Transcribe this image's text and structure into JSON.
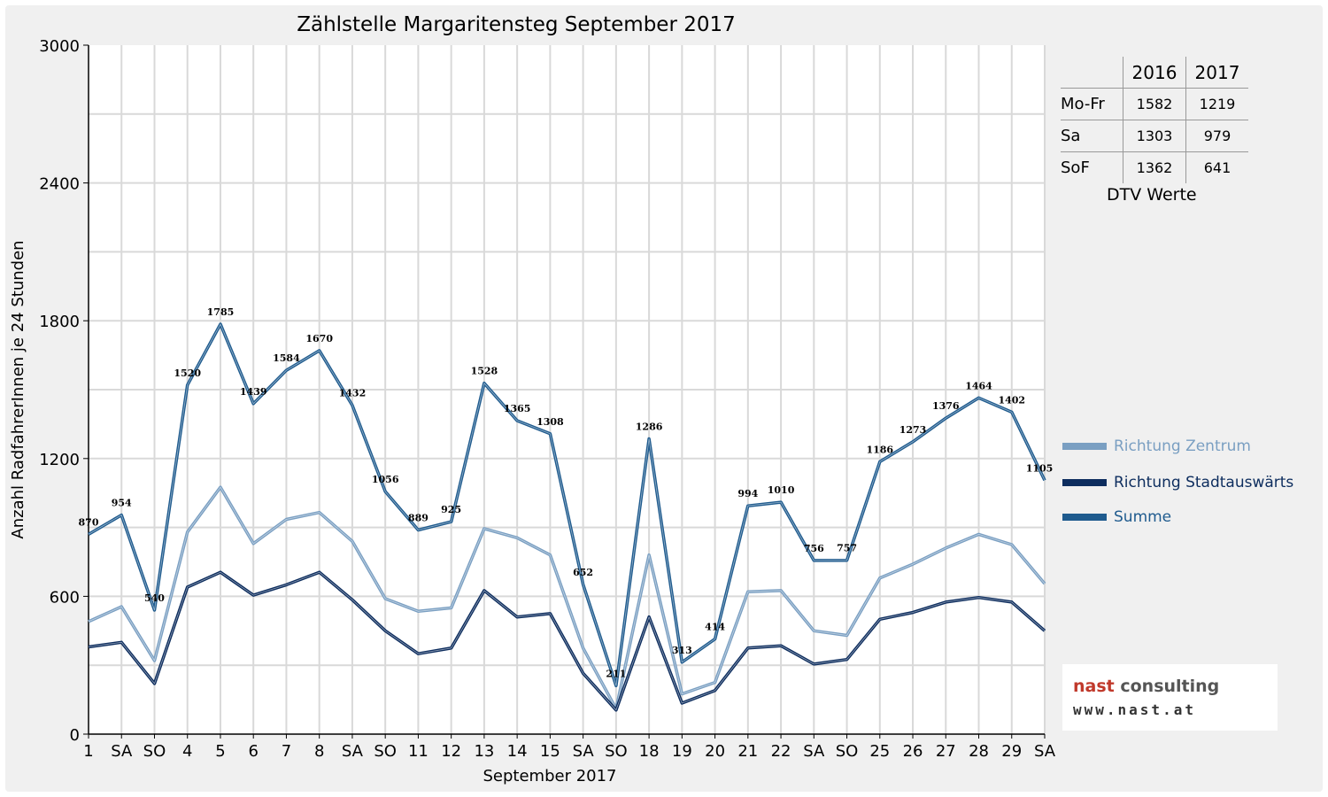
{
  "chart_data": {
    "type": "line",
    "title": "Zählstelle Margaritensteg September 2017",
    "xlabel": "September 2017",
    "ylabel": "Anzahl RadfahrerInnen je 24 Stunden",
    "ylim": [
      0,
      3000
    ],
    "yticks": [
      "3000",
      "2400",
      "1800",
      "1200",
      "600",
      "0"
    ],
    "grid": true,
    "legend_position": "right",
    "categories": [
      "1",
      "SA",
      "SO",
      "4",
      "5",
      "6",
      "7",
      "8",
      "SA",
      "SO",
      "11",
      "12",
      "13",
      "14",
      "15",
      "SA",
      "SO",
      "18",
      "19",
      "20",
      "21",
      "22",
      "SA",
      "SO",
      "25",
      "26",
      "27",
      "28",
      "29",
      "SA"
    ],
    "sunday_color": "#e00000",
    "series": [
      {
        "name": "Richtung Zentrum",
        "color": "#7a9fc2",
        "values": [
          490,
          555,
          320,
          880,
          1075,
          830,
          935,
          965,
          840,
          590,
          535,
          550,
          895,
          855,
          780,
          375,
          110,
          780,
          175,
          225,
          620,
          625,
          450,
          430,
          680,
          740,
          810,
          870,
          825,
          655
        ]
      },
      {
        "name": "Richtung Stadtauswärts",
        "color": "#0d2d5e",
        "values": [
          380,
          400,
          220,
          640,
          705,
          605,
          650,
          705,
          585,
          450,
          350,
          375,
          625,
          510,
          525,
          265,
          105,
          510,
          135,
          190,
          375,
          385,
          305,
          325,
          500,
          530,
          575,
          595,
          575,
          450
        ]
      },
      {
        "name": "Summe",
        "color": "#1f5b8e",
        "values": [
          870,
          954,
          540,
          1520,
          1785,
          1439,
          1584,
          1670,
          1432,
          1056,
          889,
          925,
          1528,
          1365,
          1308,
          652,
          211,
          1286,
          313,
          414,
          994,
          1010,
          756,
          757,
          1186,
          1273,
          1376,
          1464,
          1402,
          1105
        ]
      }
    ],
    "data_labels": [
      "870",
      "954",
      "540",
      "1520",
      "1785",
      "1439",
      "1584",
      "1670",
      "1432",
      "1056",
      "889",
      "925",
      "1528",
      "1365",
      "1308",
      "652",
      "211",
      "1286",
      "313",
      "414",
      "994",
      "1010",
      "756",
      "757",
      "1186",
      "1273",
      "1376",
      "1464",
      "1402",
      "1105"
    ]
  },
  "dtv_table": {
    "headers": [
      "",
      "2016",
      "2017"
    ],
    "rows": [
      {
        "label": "Mo-Fr",
        "v2016": "1582",
        "v2017": "1219"
      },
      {
        "label": "Sa",
        "v2016": "1303",
        "v2017": "979"
      },
      {
        "label": "SoF",
        "v2016": "1362",
        "v2017": "641"
      }
    ],
    "caption": "DTV Werte"
  },
  "legend": [
    {
      "label": "Richtung Zentrum",
      "color": "#7a9fc2"
    },
    {
      "label": "Richtung Stadtauswärts",
      "color": "#0d2d5e"
    },
    {
      "label": "Summe",
      "color": "#1f5b8e"
    }
  ],
  "logo": {
    "part1": "nast",
    "part2": " consulting",
    "part1_color": "#c0392b",
    "part2_color": "#555555",
    "url_text": "www.nast.at"
  }
}
